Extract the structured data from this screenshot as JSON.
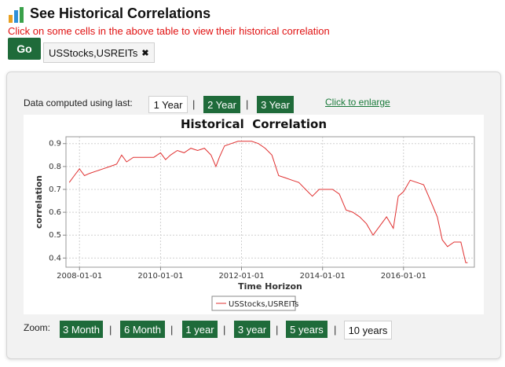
{
  "header": {
    "title": "See Historical Correlations",
    "hint": "Click on some cells in the above table to view their historical correlation",
    "icon": "bar-chart-icon"
  },
  "controls": {
    "go_label": "Go",
    "selection_chip": "USStocks,USREITs",
    "remove_icon": "close-icon"
  },
  "panel": {
    "computed_label": "Data computed using last:",
    "periods": [
      {
        "label": "1 Year",
        "active": true
      },
      {
        "label": "2 Year",
        "active": false
      },
      {
        "label": "3 Year",
        "active": false
      }
    ],
    "enlarge_link": "Click to enlarge",
    "zoom_label": "Zoom:",
    "zooms": [
      {
        "label": "3 Month",
        "active": false
      },
      {
        "label": "6 Month",
        "active": false
      },
      {
        "label": "1 year",
        "active": false
      },
      {
        "label": "3 year",
        "active": false
      },
      {
        "label": "5 years",
        "active": false
      },
      {
        "label": "10 years",
        "active": true
      }
    ]
  },
  "colors": {
    "accent": "#1f6b3a",
    "hint": "#e01010",
    "line": "#e03030"
  },
  "chart_data": {
    "type": "line",
    "title": "Historical  Correlation",
    "xlabel": "Time Horizon",
    "ylabel": "correlation",
    "xlim": [
      "2007-09-01",
      "2017-10-01"
    ],
    "ylim": [
      0.36,
      0.93
    ],
    "x_ticks": [
      "2008-01-01",
      "2010-01-01",
      "2012-01-01",
      "2014-01-01",
      "2016-01-01"
    ],
    "y_ticks": [
      0.4,
      0.5,
      0.6,
      0.7,
      0.8,
      0.9
    ],
    "grid": true,
    "legend": "bottom-center",
    "series": [
      {
        "name": "USStocks,USREITs",
        "points": [
          [
            "2007-10-01",
            0.73
          ],
          [
            "2007-11-15",
            0.76
          ],
          [
            "2008-01-01",
            0.79
          ],
          [
            "2008-02-15",
            0.76
          ],
          [
            "2008-04-01",
            0.77
          ],
          [
            "2008-06-01",
            0.78
          ],
          [
            "2008-08-01",
            0.79
          ],
          [
            "2008-10-01",
            0.8
          ],
          [
            "2008-12-01",
            0.81
          ],
          [
            "2009-01-15",
            0.85
          ],
          [
            "2009-03-01",
            0.82
          ],
          [
            "2009-05-01",
            0.84
          ],
          [
            "2009-07-01",
            0.84
          ],
          [
            "2009-09-01",
            0.84
          ],
          [
            "2009-11-01",
            0.84
          ],
          [
            "2010-01-01",
            0.86
          ],
          [
            "2010-02-15",
            0.83
          ],
          [
            "2010-04-01",
            0.85
          ],
          [
            "2010-06-01",
            0.87
          ],
          [
            "2010-08-01",
            0.86
          ],
          [
            "2010-10-01",
            0.88
          ],
          [
            "2010-12-01",
            0.87
          ],
          [
            "2011-02-01",
            0.88
          ],
          [
            "2011-04-01",
            0.85
          ],
          [
            "2011-05-15",
            0.8
          ],
          [
            "2011-06-15",
            0.84
          ],
          [
            "2011-08-01",
            0.89
          ],
          [
            "2011-10-01",
            0.9
          ],
          [
            "2011-12-01",
            0.91
          ],
          [
            "2012-02-01",
            0.91
          ],
          [
            "2012-04-01",
            0.91
          ],
          [
            "2012-06-01",
            0.9
          ],
          [
            "2012-08-01",
            0.88
          ],
          [
            "2012-10-01",
            0.85
          ],
          [
            "2012-12-01",
            0.76
          ],
          [
            "2013-02-01",
            0.75
          ],
          [
            "2013-04-01",
            0.74
          ],
          [
            "2013-06-01",
            0.73
          ],
          [
            "2013-08-01",
            0.7
          ],
          [
            "2013-10-01",
            0.67
          ],
          [
            "2013-12-01",
            0.7
          ],
          [
            "2014-02-01",
            0.7
          ],
          [
            "2014-04-01",
            0.7
          ],
          [
            "2014-06-01",
            0.68
          ],
          [
            "2014-08-01",
            0.61
          ],
          [
            "2014-10-01",
            0.6
          ],
          [
            "2014-12-01",
            0.58
          ],
          [
            "2015-02-01",
            0.55
          ],
          [
            "2015-04-01",
            0.5
          ],
          [
            "2015-06-01",
            0.54
          ],
          [
            "2015-08-01",
            0.58
          ],
          [
            "2015-10-01",
            0.53
          ],
          [
            "2015-11-15",
            0.67
          ],
          [
            "2016-01-01",
            0.69
          ],
          [
            "2016-03-01",
            0.74
          ],
          [
            "2016-05-01",
            0.73
          ],
          [
            "2016-07-01",
            0.72
          ],
          [
            "2016-09-01",
            0.65
          ],
          [
            "2016-11-01",
            0.58
          ],
          [
            "2016-12-15",
            0.48
          ],
          [
            "2017-02-01",
            0.45
          ],
          [
            "2017-04-01",
            0.47
          ],
          [
            "2017-06-01",
            0.47
          ],
          [
            "2017-07-15",
            0.38
          ],
          [
            "2017-08-01",
            0.38
          ]
        ]
      }
    ]
  }
}
